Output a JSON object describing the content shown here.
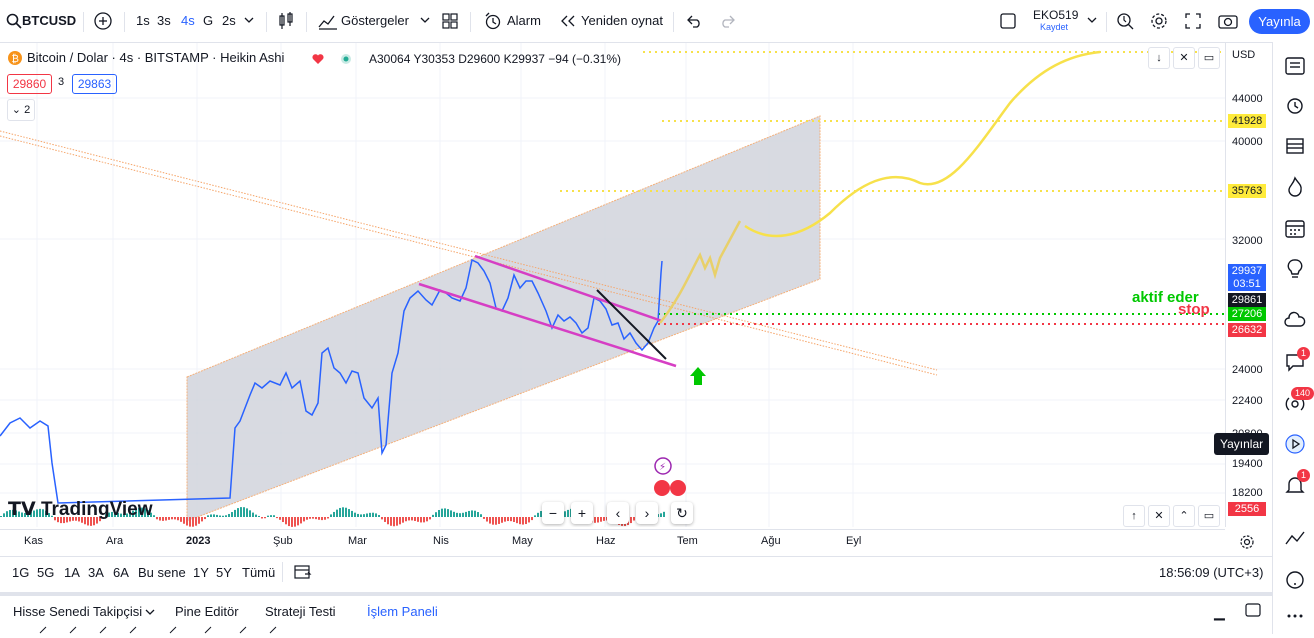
{
  "toolbar": {
    "symbol": "BTCUSD",
    "intervals": [
      "1s",
      "3s",
      "4s",
      "G",
      "2s"
    ],
    "indicators_label": "Göstergeler",
    "alarm_label": "Alarm",
    "replay_label": "Yeniden oynat",
    "layout_name": "EKO519",
    "layout_sub": "Kaydet",
    "publish_label": "Yayınla"
  },
  "legend": {
    "title": "Bitcoin / Dolar · 4s · BITSTAMP · Heikin Ashi",
    "ohlc": "A30064 Y30353 D29600 K29937 −94 (−0.31%)",
    "bid": "29860",
    "spread": "3",
    "ask": "29863",
    "collapse_count": "2"
  },
  "price_axis": {
    "currency": "USD",
    "labels": [
      "44000",
      "40000",
      "32000",
      "24000",
      "22400",
      "20800",
      "19400",
      "18200"
    ],
    "tags": [
      {
        "value": "41928",
        "bg": "#ffeb3b",
        "fg": "#131722"
      },
      {
        "value": "35763",
        "bg": "#ffeb3b",
        "fg": "#131722"
      },
      {
        "value": "29937",
        "bg": "#2962ff",
        "fg": "#ffffff"
      },
      {
        "value": "03:51",
        "bg": "#2962ff",
        "fg": "#ffffff"
      },
      {
        "value": "29861",
        "bg": "#131722",
        "fg": "#ffffff"
      },
      {
        "value": "27206",
        "bg": "#00c800",
        "fg": "#ffffff"
      },
      {
        "value": "26632",
        "bg": "#f23645",
        "fg": "#ffffff"
      }
    ],
    "osc_tag": "2556"
  },
  "annotations": {
    "aktif": "aktif eder",
    "stop": "stop"
  },
  "time_axis": [
    "Kas",
    "Ara",
    "2023",
    "Şub",
    "Mar",
    "Nis",
    "May",
    "Haz",
    "Tem",
    "Ağu",
    "Eyl"
  ],
  "range_bar": {
    "ranges": [
      "1G",
      "5G",
      "1A",
      "3A",
      "6A",
      "Bu sene",
      "1Y",
      "5Y",
      "Tümü"
    ],
    "clock": "18:56:09 (UTC+3)"
  },
  "bottom_tabs": [
    "Hisse Senedi Takipçisi",
    "Pine Editör",
    "Strateji Testi",
    "İşlem Paneli"
  ],
  "logo": "TradingView",
  "tooltip": "Yayınlar",
  "badges": {
    "alerts": "1",
    "ideas": "140",
    "notif": "1"
  },
  "colors": {
    "accent": "#2962ff",
    "channel_fill": "#d1d4dc",
    "projection": "#f7e14b",
    "target_line": "#f7e14b",
    "trigger_line": "#00c800",
    "stop_line": "#f23645",
    "flag_lines": "#d63ec4",
    "candles_up": "#2962ff",
    "candles_down": "#131722"
  }
}
